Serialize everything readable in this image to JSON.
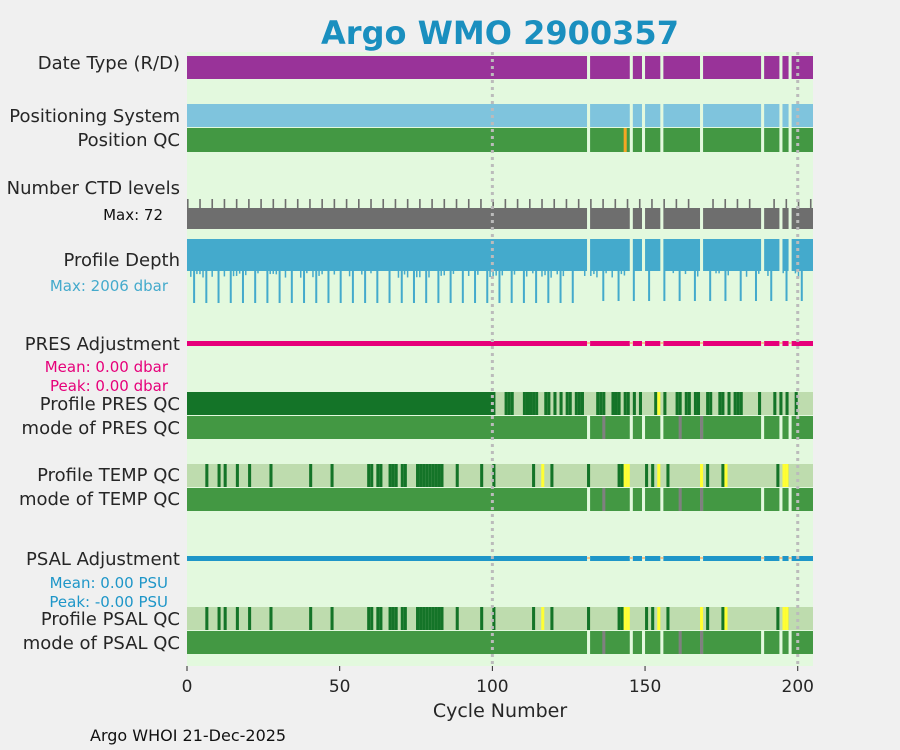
{
  "chart_data": {
    "type": "qc-timeline",
    "title": "Argo WMO 2900357",
    "xlabel": "Cycle Number",
    "xlim": [
      0,
      205
    ],
    "xticks": [
      0,
      50,
      100,
      150,
      200
    ],
    "xtick_labels": [
      "0",
      "50",
      "100",
      "150",
      "200"
    ],
    "reference_cycles": [
      100,
      200
    ],
    "rows": [
      {
        "label": "Date Type (R/D)",
        "type": "category",
        "color": "#993399"
      },
      {
        "label": "Positioning System",
        "type": "category",
        "color": "#7fc4dd"
      },
      {
        "label": "Position QC",
        "type": "qc",
        "color": "#439843"
      },
      {
        "label": "Number CTD levels",
        "type": "count",
        "color": "#6e6e6e",
        "max": 72,
        "max_label": "Max: 72"
      },
      {
        "label": "Profile Depth",
        "type": "depth",
        "color": "#44aacc",
        "max": 2006,
        "max_label": "Max: 2006 dbar"
      },
      {
        "label": "PRES Adjustment",
        "type": "adjustment",
        "color": "#e6007a",
        "mean_label": "Mean: 0.00 dbar",
        "peak_label": "Peak: 0.00 dbar"
      },
      {
        "label": "Profile PRES QC",
        "type": "profile-qc"
      },
      {
        "label": "mode of PRES QC",
        "type": "qc-mode",
        "color": "#439843"
      },
      {
        "label": "Profile TEMP QC",
        "type": "profile-qc"
      },
      {
        "label": "mode of TEMP QC",
        "type": "qc-mode",
        "color": "#439843"
      },
      {
        "label": "PSAL Adjustment",
        "type": "adjustment",
        "color": "#1e96c8",
        "mean_label": "Mean: 0.00 PSU",
        "peak_label": "Peak: -0.00 PSU"
      },
      {
        "label": "Profile PSAL QC",
        "type": "profile-qc"
      },
      {
        "label": "mode of PSAL QC",
        "type": "qc-mode",
        "color": "#439843"
      }
    ],
    "missing_cycles": [
      131,
      145,
      149,
      155,
      168,
      188,
      194,
      197
    ],
    "orange_position_qc_cycles": [
      143
    ],
    "grey_mode_qc_cycles": {
      "pres": [
        136,
        161,
        168
      ],
      "temp": [
        136,
        161,
        168
      ],
      "psal": [
        136,
        161,
        168
      ]
    },
    "profile_pres_qc": {
      "dark_range": [
        0,
        101
      ],
      "dark_cycles": [
        104,
        105,
        106,
        110,
        111,
        112,
        113,
        114,
        117,
        118,
        120,
        122,
        124,
        125,
        127,
        128,
        129,
        134,
        135,
        136,
        139,
        140,
        141,
        143,
        144,
        146,
        148,
        153,
        156,
        160,
        161,
        163,
        164,
        166,
        167,
        170,
        171,
        174,
        175,
        177,
        179,
        180,
        181,
        187,
        192,
        194,
        196,
        199
      ],
      "yellow_cycles": [
        154
      ]
    },
    "profile_temp_qc": {
      "dark_cycles": [
        6,
        10,
        12,
        16,
        20,
        27,
        40,
        47,
        59,
        60,
        62,
        63,
        66,
        67,
        68,
        70,
        71,
        75,
        76,
        77,
        78,
        79,
        80,
        81,
        82,
        83,
        88,
        96,
        100,
        113,
        119,
        131,
        141,
        142,
        150,
        152,
        157,
        170,
        175,
        193,
        196
      ],
      "yellow_cycles": [
        116,
        143,
        144,
        154,
        168,
        176,
        195,
        196
      ]
    },
    "profile_psal_qc": {
      "dark_cycles": [
        6,
        10,
        12,
        16,
        20,
        27,
        40,
        47,
        59,
        60,
        62,
        63,
        66,
        67,
        68,
        70,
        71,
        75,
        76,
        77,
        78,
        79,
        80,
        81,
        82,
        83,
        88,
        96,
        100,
        113,
        119,
        131,
        141,
        142,
        150,
        152,
        157,
        170,
        175,
        193,
        196
      ],
      "yellow_cycles": [
        116,
        143,
        144,
        154,
        168,
        176,
        195,
        196
      ]
    },
    "colors": {
      "panel_background": "#e3f9de",
      "qc_light": "#bedcae",
      "qc_dark": "#147428",
      "qc_yellow": "#ffff33",
      "qc_orange": "#f5a623",
      "qc_grey": "#808080",
      "adjustment_gap": "#f5c28a",
      "reference_line": "#bbbbbb"
    }
  },
  "footer": {
    "text": "Argo WHOI 21-Dec-2025"
  }
}
